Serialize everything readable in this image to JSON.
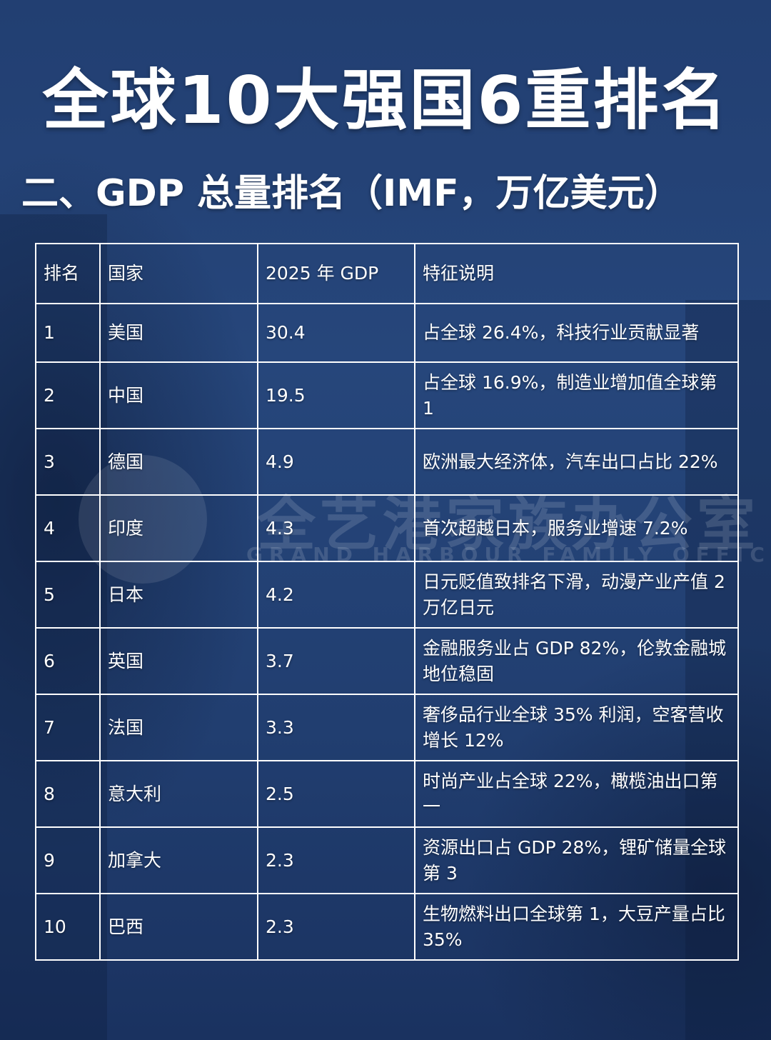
{
  "title": "全球10大强国6重排名",
  "subtitle": "二、GDP 总量排名（IMF，万亿美元）",
  "watermark": {
    "cn": "全艺港家族办公室",
    "en": "GRAND HARBOUR FAMILY OFFICE"
  },
  "table": {
    "headers": [
      "排名",
      "国家",
      "2025 年 GDP",
      "特征说明"
    ],
    "rows": [
      {
        "rank": "1",
        "country": "美国",
        "gdp": "30.4",
        "note": "占全球 26.4%，科技行业贡献显著"
      },
      {
        "rank": "2",
        "country": "中国",
        "gdp": "19.5",
        "note": "占全球 16.9%，制造业增加值全球第 1"
      },
      {
        "rank": "3",
        "country": "德国",
        "gdp": "4.9",
        "note": "欧洲最大经济体，汽车出口占比 22%"
      },
      {
        "rank": "4",
        "country": "印度",
        "gdp": "4.3",
        "note": "首次超越日本，服务业增速 7.2%"
      },
      {
        "rank": "5",
        "country": "日本",
        "gdp": "4.2",
        "note": "日元贬值致排名下滑，动漫产业产值 2 万亿日元"
      },
      {
        "rank": "6",
        "country": "英国",
        "gdp": "3.7",
        "note": "金融服务业占 GDP 82%，伦敦金融城地位稳固"
      },
      {
        "rank": "7",
        "country": "法国",
        "gdp": "3.3",
        "note": "奢侈品行业全球 35% 利润，空客营收增长 12%"
      },
      {
        "rank": "8",
        "country": "意大利",
        "gdp": "2.5",
        "note": "时尚产业占全球 22%，橄榄油出口第一"
      },
      {
        "rank": "9",
        "country": "加拿大",
        "gdp": "2.3",
        "note": "资源出口占 GDP 28%，锂矿储量全球第 3"
      },
      {
        "rank": "10",
        "country": "巴西",
        "gdp": "2.3",
        "note": "生物燃料出口全球第 1，大豆产量占比 35%"
      }
    ]
  }
}
